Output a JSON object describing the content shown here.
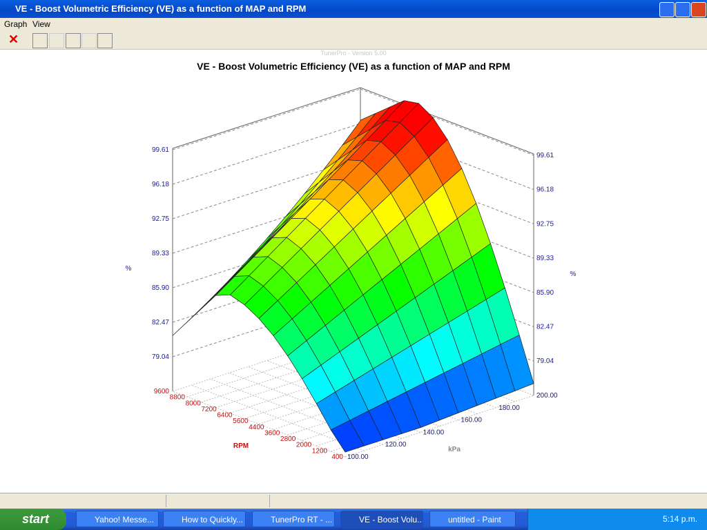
{
  "window": {
    "title": "VE - Boost Volumetric Efficiency (VE) as a function of MAP and RPM",
    "menu": [
      "Graph",
      "View"
    ]
  },
  "chart": {
    "watermark": "TunerPro - Version 5.00",
    "title": "VE - Boost Volumetric Efficiency (VE) as a function of MAP and RPM",
    "z_unit": "%",
    "z_ticks": [
      "99.61",
      "96.18",
      "92.75",
      "89.33",
      "85.90",
      "82.47",
      "79.04"
    ],
    "rpm_label": "RPM",
    "rpm_ticks": [
      "9600",
      "8800",
      "8000",
      "7200",
      "6400",
      "5600",
      "4400",
      "3600",
      "2800",
      "2000",
      "1200",
      "400"
    ],
    "kpa_label": "kPa",
    "kpa_ticks": [
      "100.00",
      "120.00",
      "140.00",
      "160.00",
      "180.00",
      "200.00"
    ]
  },
  "taskbar": {
    "start": "start",
    "items": [
      "Yahoo! Messe...",
      "How to Quickly...",
      "TunerPro RT - ...",
      "VE - Boost Volu...",
      "untitled - Paint"
    ],
    "clock": "5:14 p.m."
  }
}
